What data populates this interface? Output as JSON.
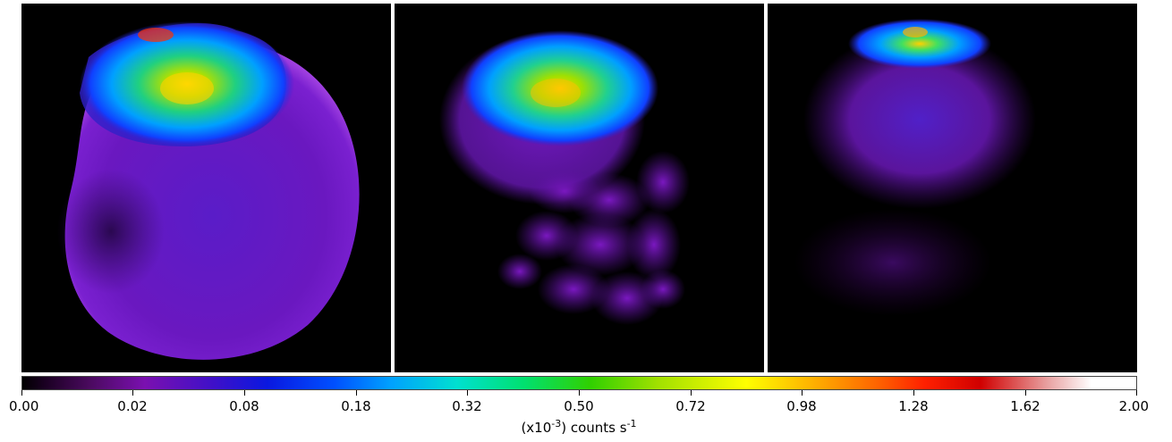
{
  "panels": [
    {
      "id": "panel-1",
      "icon": "simulated-xray-emission-image"
    },
    {
      "id": "panel-2",
      "icon": "simulated-xray-emission-image"
    },
    {
      "id": "panel-3",
      "icon": "simulated-xray-emission-image"
    }
  ],
  "colorbar": {
    "ticks": [
      "0.00",
      "0.02",
      "0.08",
      "0.18",
      "0.32",
      "0.50",
      "0.72",
      "0.98",
      "1.28",
      "1.62",
      "2.00"
    ],
    "label_prefix": "(x10",
    "label_exp": "-3",
    "label_mid": ") counts s",
    "label_unit_exp": "-1"
  }
}
